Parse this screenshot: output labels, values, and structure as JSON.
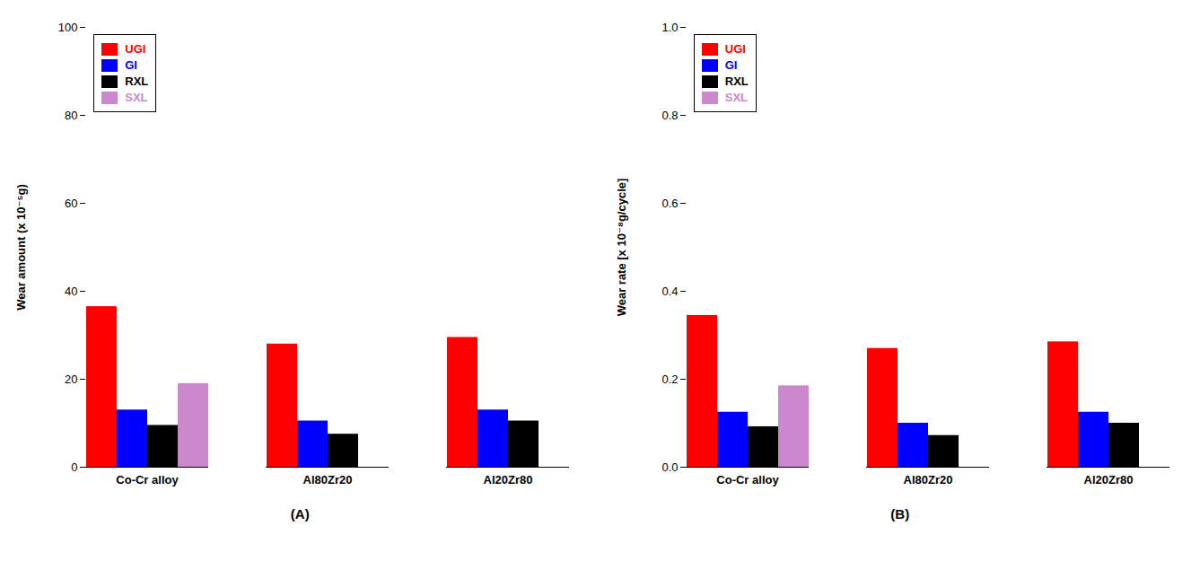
{
  "chart_data": [
    {
      "type": "bar",
      "title": "(A)",
      "categories": [
        "Co-Cr alloy",
        "Al80Zr20",
        "Al20Zr80"
      ],
      "series": [
        {
          "name": "UGI",
          "color": "#ff0000",
          "values": [
            36.5,
            28.0,
            29.5
          ]
        },
        {
          "name": "GI",
          "color": "#0000ff",
          "values": [
            13.0,
            10.5,
            13.0
          ]
        },
        {
          "name": "RXL",
          "color": "#000000",
          "values": [
            9.5,
            7.5,
            10.5
          ]
        },
        {
          "name": "SXL",
          "color": "#cc88cc",
          "values": [
            19.0,
            0.0,
            0.0
          ]
        }
      ],
      "ylabel": "Wear amount (x 10⁻⁵g)",
      "ylim": [
        0,
        100
      ],
      "yticks": [
        0,
        20,
        40,
        60,
        80,
        100
      ],
      "legend": "upper left",
      "grid": false
    },
    {
      "type": "bar",
      "title": "(B)",
      "categories": [
        "Co-Cr alloy",
        "Al80Zr20",
        "Al20Zr80"
      ],
      "series": [
        {
          "name": "UGI",
          "color": "#ff0000",
          "values": [
            0.345,
            0.27,
            0.285
          ]
        },
        {
          "name": "GI",
          "color": "#0000ff",
          "values": [
            0.125,
            0.1,
            0.125
          ]
        },
        {
          "name": "RXL",
          "color": "#000000",
          "values": [
            0.092,
            0.072,
            0.1
          ]
        },
        {
          "name": "SXL",
          "color": "#cc88cc",
          "values": [
            0.185,
            0.0,
            0.0
          ]
        }
      ],
      "ylabel": "Wear rate [x 10⁻⁸g/cycle]",
      "ylim": [
        0,
        1.0
      ],
      "yticks": [
        {
          "value": 0,
          "label": "0.0"
        },
        0.2,
        0.4,
        0.6,
        0.8,
        {
          "value": 1,
          "label": "1.0"
        }
      ],
      "legend": "upper left",
      "grid": false
    }
  ]
}
